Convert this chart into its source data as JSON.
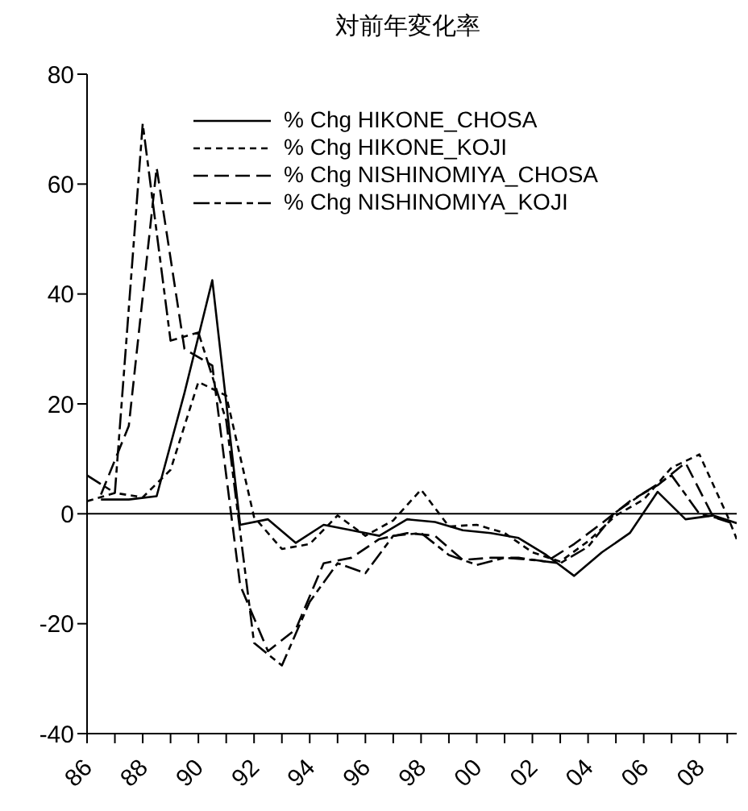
{
  "chart_data": {
    "type": "line",
    "title": "対前年変化率",
    "xlim": [
      1986,
      2009.34
    ],
    "xticks": [
      {
        "value": 1986,
        "label": "86"
      },
      {
        "value": 1987,
        "label": null
      },
      {
        "value": 1988,
        "label": "88"
      },
      {
        "value": 1989,
        "label": null
      },
      {
        "value": 1990,
        "label": "90"
      },
      {
        "value": 1991,
        "label": null
      },
      {
        "value": 1992,
        "label": "92"
      },
      {
        "value": 1993,
        "label": null
      },
      {
        "value": 1994,
        "label": "94"
      },
      {
        "value": 1995,
        "label": null
      },
      {
        "value": 1996,
        "label": "96"
      },
      {
        "value": 1997,
        "label": null
      },
      {
        "value": 1998,
        "label": "98"
      },
      {
        "value": 1999,
        "label": null
      },
      {
        "value": 2000,
        "label": "00"
      },
      {
        "value": 2001,
        "label": null
      },
      {
        "value": 2002,
        "label": "02"
      },
      {
        "value": 2003,
        "label": null
      },
      {
        "value": 2004,
        "label": "04"
      },
      {
        "value": 2005,
        "label": null
      },
      {
        "value": 2006,
        "label": "06"
      },
      {
        "value": 2007,
        "label": null
      },
      {
        "value": 2008,
        "label": "08"
      },
      {
        "value": 2009,
        "label": null
      }
    ],
    "ylim": [
      -40,
      80
    ],
    "yticks": [
      -40,
      -20,
      0,
      20,
      40,
      60,
      80
    ],
    "legend": "top right",
    "ref_lines": [
      {
        "axis": "y",
        "value": 0,
        "color": "#000000"
      }
    ],
    "series": [
      {
        "name": "% Chg HIKONE_CHOSA",
        "color": "#000000",
        "line_style": "solid",
        "x": [
          1986.5,
          1987.5,
          1988.5,
          1989.5,
          1990.5,
          1991.5,
          1992.5,
          1993.5,
          1994.5,
          1995.5,
          1996.5,
          1997.5,
          1998.5,
          1999.5,
          2000.5,
          2001.5,
          2002.5,
          2003.5,
          2004.5,
          2005.5,
          2006.5,
          2007.5,
          2008.5,
          2009.34
        ],
        "values": [
          2.6,
          2.6,
          3.2,
          22,
          42.5,
          -2,
          -1,
          -5.3,
          -2,
          -3,
          -4,
          -1,
          -1.5,
          -3,
          -3.5,
          -4.4,
          -7.5,
          -11.3,
          -7,
          -3.5,
          4,
          -1,
          -0.3,
          -1.7
        ]
      },
      {
        "name": "% Chg HIKONE_KOJI",
        "color": "#000000",
        "line_style": "dashed",
        "x": [
          1986,
          1987,
          1988,
          1989,
          1990,
          1991,
          1992,
          1993,
          1994,
          1995,
          1996,
          1997,
          1998,
          1999,
          2000,
          2001,
          2002,
          2003,
          2004,
          2005,
          2006,
          2007,
          2008,
          2009,
          2009.34
        ],
        "values": [
          2.3,
          3.8,
          3,
          8,
          24,
          21.5,
          -0.6,
          -6.4,
          -5.5,
          -0.3,
          -4,
          -1.2,
          4.4,
          -2.3,
          -2,
          -3.5,
          -7,
          -8.7,
          -5,
          -0.3,
          2.6,
          8.4,
          10.8,
          -0.3,
          -4.6
        ]
      },
      {
        "name": "% Chg NISHINOMIYA_CHOSA",
        "color": "#000000",
        "line_style": "longdash",
        "x": [
          1986.5,
          1987.5,
          1988.5,
          1989.5,
          1990.5,
          1991.5,
          1992.5,
          1993.5,
          1994.5,
          1995.5,
          1996.5,
          1997.5,
          1998.5,
          1999.5,
          2000.5,
          2001.5,
          2002.5,
          2003.5,
          2004.5,
          2005.5,
          2006.5,
          2007.5,
          2008.5,
          2009.34
        ],
        "values": [
          3.5,
          16,
          63,
          30,
          27,
          -13,
          -25,
          -21,
          -9,
          -8,
          -4.6,
          -3.5,
          -4,
          -8.4,
          -8,
          -8,
          -8.7,
          -5.5,
          -1.7,
          2.3,
          5.2,
          9.3,
          -0.6,
          -2
        ]
      },
      {
        "name": "% Chg NISHINOMIYA_KOJI",
        "color": "#000000",
        "line_style": "dashdot",
        "x": [
          1986,
          1987,
          1988,
          1989,
          1990,
          1991,
          1992,
          1993,
          1994,
          1995,
          1996,
          1997,
          1998,
          1999,
          2000,
          2001,
          2002,
          2003,
          2004,
          2005,
          2006,
          2007,
          2008,
          2009
        ],
        "values": [
          7,
          3.8,
          71,
          31.5,
          33,
          17,
          -23.5,
          -27.6,
          -16,
          -9,
          -10.8,
          -4,
          -3.5,
          -7.5,
          -9.3,
          -8,
          -8.4,
          -9,
          -6,
          0.3,
          3.8,
          7,
          0,
          -1.2
        ]
      }
    ]
  }
}
